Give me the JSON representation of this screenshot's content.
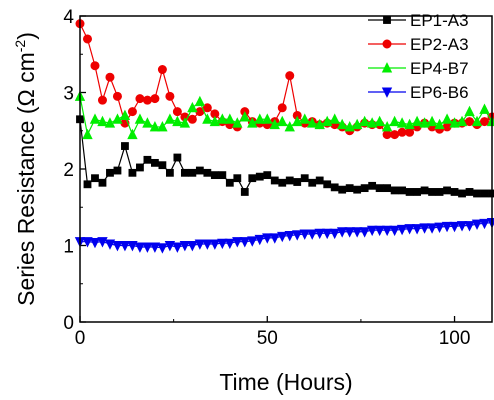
{
  "chart_data": {
    "type": "line",
    "xlabel": "Time (Hours)",
    "ylabel_parts": {
      "main": "Series Resistance (Ω cm",
      "sup": "-2",
      "close": ")"
    },
    "xlim": [
      0,
      110
    ],
    "ylim": [
      0,
      4
    ],
    "x_ticks": [
      "0",
      "50",
      "100"
    ],
    "x_tick_values": [
      0,
      50,
      100
    ],
    "y_ticks": [
      "0",
      "1",
      "2",
      "3",
      "4"
    ],
    "y_tick_values": [
      0,
      1,
      2,
      3,
      4
    ],
    "grid": false,
    "legend_position": "top-right",
    "series": [
      {
        "name": "EP1-A3",
        "color": "#000000",
        "marker": "square",
        "x": [
          0,
          2,
          4,
          6,
          8,
          10,
          12,
          14,
          16,
          18,
          20,
          22,
          24,
          26,
          28,
          30,
          32,
          34,
          36,
          38,
          40,
          42,
          44,
          46,
          48,
          50,
          52,
          54,
          56,
          58,
          60,
          62,
          64,
          66,
          68,
          70,
          72,
          74,
          76,
          78,
          80,
          82,
          84,
          86,
          88,
          90,
          92,
          94,
          96,
          98,
          100,
          102,
          104,
          106,
          108,
          110
        ],
        "values": [
          2.65,
          1.8,
          1.88,
          1.82,
          1.95,
          1.98,
          2.3,
          1.95,
          2.02,
          2.12,
          2.08,
          2.05,
          1.95,
          2.15,
          1.95,
          1.95,
          1.98,
          1.95,
          1.92,
          1.92,
          1.82,
          1.88,
          1.7,
          1.88,
          1.9,
          1.92,
          1.85,
          1.82,
          1.85,
          1.83,
          1.88,
          1.82,
          1.85,
          1.8,
          1.76,
          1.73,
          1.75,
          1.73,
          1.75,
          1.78,
          1.75,
          1.75,
          1.72,
          1.72,
          1.7,
          1.7,
          1.72,
          1.7,
          1.7,
          1.72,
          1.7,
          1.68,
          1.7,
          1.68,
          1.68,
          1.68
        ]
      },
      {
        "name": "EP2-A3",
        "color": "#ee0000",
        "marker": "circle",
        "x": [
          0,
          2,
          4,
          6,
          8,
          10,
          12,
          14,
          16,
          18,
          20,
          22,
          24,
          26,
          28,
          30,
          32,
          34,
          36,
          38,
          40,
          42,
          44,
          46,
          48,
          50,
          52,
          54,
          56,
          58,
          60,
          62,
          64,
          66,
          68,
          70,
          72,
          74,
          76,
          78,
          80,
          82,
          84,
          86,
          88,
          90,
          92,
          94,
          96,
          98,
          100,
          102,
          104,
          106,
          108,
          110
        ],
        "values": [
          3.9,
          3.7,
          3.35,
          2.9,
          3.2,
          2.95,
          2.6,
          2.75,
          2.92,
          2.9,
          2.92,
          3.3,
          2.95,
          2.75,
          2.68,
          2.65,
          2.75,
          2.8,
          2.72,
          2.62,
          2.58,
          2.55,
          2.75,
          2.62,
          2.6,
          2.58,
          2.62,
          2.8,
          3.22,
          2.7,
          2.6,
          2.62,
          2.58,
          2.6,
          2.58,
          2.55,
          2.5,
          2.55,
          2.6,
          2.58,
          2.58,
          2.45,
          2.45,
          2.48,
          2.48,
          2.55,
          2.6,
          2.55,
          2.52,
          2.55,
          2.6,
          2.6,
          2.62,
          2.58,
          2.62,
          2.68
        ]
      },
      {
        "name": "EP4-B7",
        "color": "#00ee00",
        "marker": "triangle-up",
        "x": [
          0,
          2,
          4,
          6,
          8,
          10,
          12,
          14,
          16,
          18,
          20,
          22,
          24,
          26,
          28,
          30,
          32,
          34,
          36,
          38,
          40,
          42,
          44,
          46,
          48,
          50,
          52,
          54,
          56,
          58,
          60,
          62,
          64,
          66,
          68,
          70,
          72,
          74,
          76,
          78,
          80,
          82,
          84,
          86,
          88,
          90,
          92,
          94,
          96,
          98,
          100,
          102,
          104,
          106,
          108,
          110
        ],
        "values": [
          2.95,
          2.45,
          2.65,
          2.62,
          2.6,
          2.65,
          2.7,
          2.45,
          2.65,
          2.6,
          2.55,
          2.55,
          2.65,
          2.62,
          2.6,
          2.8,
          2.88,
          2.65,
          2.62,
          2.65,
          2.65,
          2.6,
          2.68,
          2.6,
          2.65,
          2.65,
          2.58,
          2.62,
          2.55,
          2.62,
          2.65,
          2.6,
          2.58,
          2.62,
          2.65,
          2.58,
          2.55,
          2.58,
          2.62,
          2.6,
          2.62,
          2.55,
          2.62,
          2.6,
          2.58,
          2.62,
          2.6,
          2.62,
          2.58,
          2.65,
          2.6,
          2.62,
          2.75,
          2.62,
          2.78,
          2.62
        ]
      },
      {
        "name": "EP6-B6",
        "color": "#0000ee",
        "marker": "triangle-down",
        "x": [
          0,
          2,
          4,
          6,
          8,
          10,
          12,
          14,
          16,
          18,
          20,
          22,
          24,
          26,
          28,
          30,
          32,
          34,
          36,
          38,
          40,
          42,
          44,
          46,
          48,
          50,
          52,
          54,
          56,
          58,
          60,
          62,
          64,
          66,
          68,
          70,
          72,
          74,
          76,
          78,
          80,
          82,
          84,
          86,
          88,
          90,
          92,
          94,
          96,
          98,
          100,
          102,
          104,
          106,
          108,
          110
        ],
        "values": [
          1.05,
          1.05,
          1.04,
          1.05,
          1.02,
          1.0,
          1.0,
          1.0,
          0.98,
          0.98,
          0.98,
          0.97,
          1.0,
          0.98,
          1.0,
          1.0,
          1.02,
          1.02,
          1.02,
          1.03,
          1.03,
          1.05,
          1.05,
          1.06,
          1.08,
          1.1,
          1.1,
          1.12,
          1.13,
          1.14,
          1.15,
          1.15,
          1.16,
          1.16,
          1.16,
          1.18,
          1.18,
          1.18,
          1.18,
          1.2,
          1.2,
          1.2,
          1.2,
          1.21,
          1.22,
          1.22,
          1.23,
          1.23,
          1.24,
          1.25,
          1.25,
          1.26,
          1.26,
          1.28,
          1.29,
          1.3
        ]
      }
    ]
  }
}
